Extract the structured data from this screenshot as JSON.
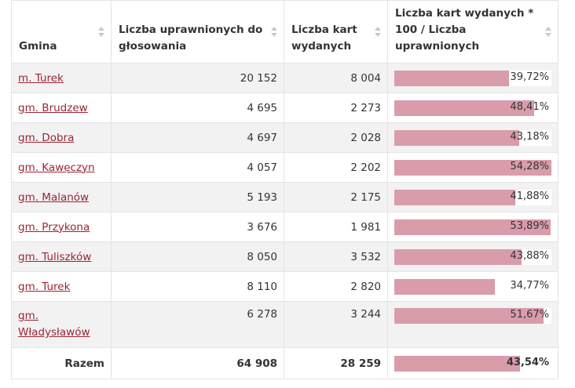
{
  "table": {
    "headers": [
      "Gmina",
      "Liczba uprawnionych do głosowania",
      "Liczba kart wydanych",
      "Liczba kart wydanych * 100 / Liczba uprawnionych"
    ],
    "rows": [
      {
        "name": "m. Turek",
        "uprawnieni": "20 152",
        "karty": "8 004",
        "pct_text": "39,72%",
        "pct": 39.72
      },
      {
        "name": "gm. Brudzew",
        "uprawnieni": "4 695",
        "karty": "2 273",
        "pct_text": "48,41%",
        "pct": 48.41
      },
      {
        "name": "gm. Dobra",
        "uprawnieni": "4 697",
        "karty": "2 028",
        "pct_text": "43,18%",
        "pct": 43.18
      },
      {
        "name": "gm. Kawęczyn",
        "uprawnieni": "4 057",
        "karty": "2 202",
        "pct_text": "54,28%",
        "pct": 54.28
      },
      {
        "name": "gm. Malanów",
        "uprawnieni": "5 193",
        "karty": "2 175",
        "pct_text": "41,88%",
        "pct": 41.88
      },
      {
        "name": "gm. Przykona",
        "uprawnieni": "3 676",
        "karty": "1 981",
        "pct_text": "53,89%",
        "pct": 53.89
      },
      {
        "name": "gm. Tuliszków",
        "uprawnieni": "8 050",
        "karty": "3 532",
        "pct_text": "43,88%",
        "pct": 43.88
      },
      {
        "name": "gm. Turek",
        "uprawnieni": "8 110",
        "karty": "2 820",
        "pct_text": "34,77%",
        "pct": 34.77
      },
      {
        "name": "gm. Władysławów",
        "uprawnieni": "6 278",
        "karty": "3 244",
        "pct_text": "51,67%",
        "pct": 51.67
      }
    ],
    "footer": {
      "label": "Razem",
      "uprawnieni": "64 908",
      "karty": "28 259",
      "pct_text": "43,54%",
      "pct": 43.54
    },
    "bar_scale_max": 54.28,
    "colors": {
      "bar": "#d99cab",
      "link": "#9b2435"
    }
  }
}
